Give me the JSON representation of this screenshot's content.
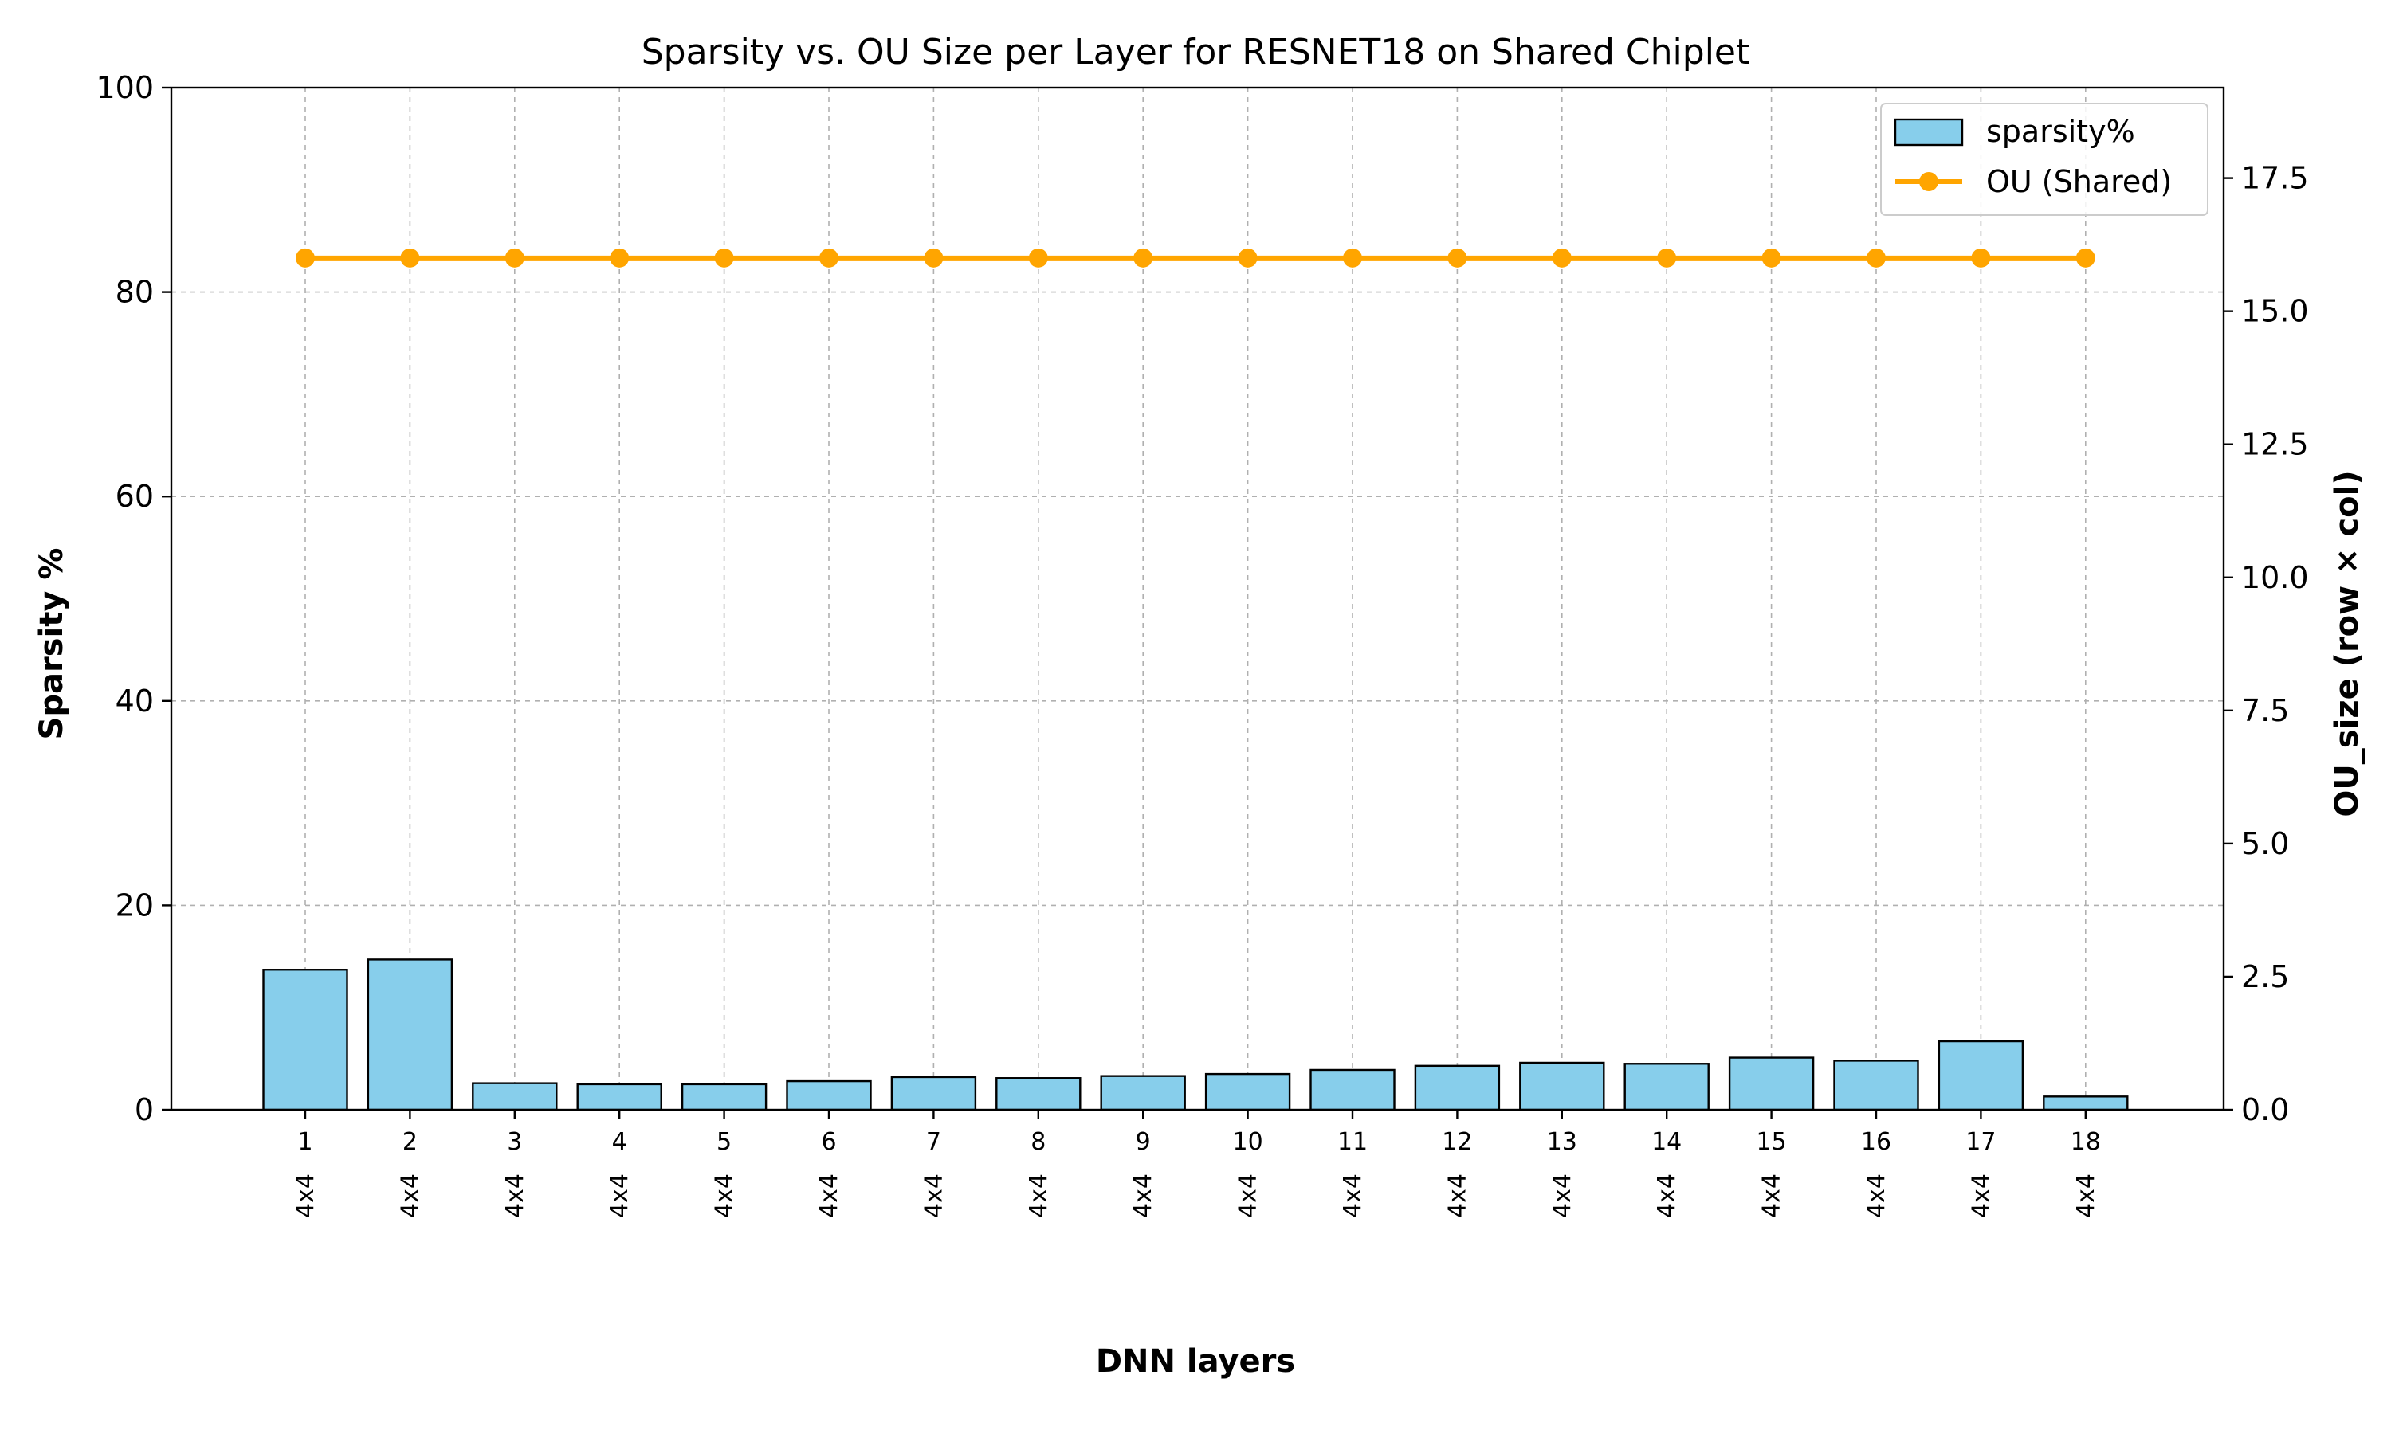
{
  "chart_data": {
    "type": "bar+line",
    "title": "Sparsity vs. OU Size per Layer for RESNET18 on Shared Chiplet",
    "xlabel": "DNN layers",
    "ylabel_left": "Sparsity %",
    "ylabel_right": "OU_size (row × col)",
    "categories": [
      "1",
      "2",
      "3",
      "4",
      "5",
      "6",
      "7",
      "8",
      "9",
      "10",
      "11",
      "12",
      "13",
      "14",
      "15",
      "16",
      "17",
      "18"
    ],
    "ou_labels": [
      "4x4",
      "4x4",
      "4x4",
      "4x4",
      "4x4",
      "4x4",
      "4x4",
      "4x4",
      "4x4",
      "4x4",
      "4x4",
      "4x4",
      "4x4",
      "4x4",
      "4x4",
      "4x4",
      "4x4",
      "4x4"
    ],
    "series": [
      {
        "name": "sparsity%",
        "type": "bar",
        "axis": "left",
        "color": "#87CEEB",
        "edge_color": "#000000",
        "values": [
          13.7,
          14.7,
          2.6,
          2.5,
          2.5,
          2.8,
          3.2,
          3.1,
          3.3,
          3.5,
          3.9,
          4.3,
          4.6,
          4.5,
          5.1,
          4.8,
          6.7,
          1.3
        ]
      },
      {
        "name": "OU (Shared)",
        "type": "line",
        "axis": "right",
        "color": "#FFA500",
        "values": [
          16,
          16,
          16,
          16,
          16,
          16,
          16,
          16,
          16,
          16,
          16,
          16,
          16,
          16,
          16,
          16,
          16,
          16
        ]
      }
    ],
    "ylim_left": [
      0,
      100
    ],
    "yticks_left": [
      0,
      20,
      40,
      60,
      80,
      100
    ],
    "ylim_right": [
      0,
      19.2
    ],
    "yticks_right": [
      "0.0",
      "2.5",
      "5.0",
      "7.5",
      "10.0",
      "12.5",
      "15.0",
      "17.5"
    ],
    "grid": true,
    "legend_position": "upper right"
  }
}
